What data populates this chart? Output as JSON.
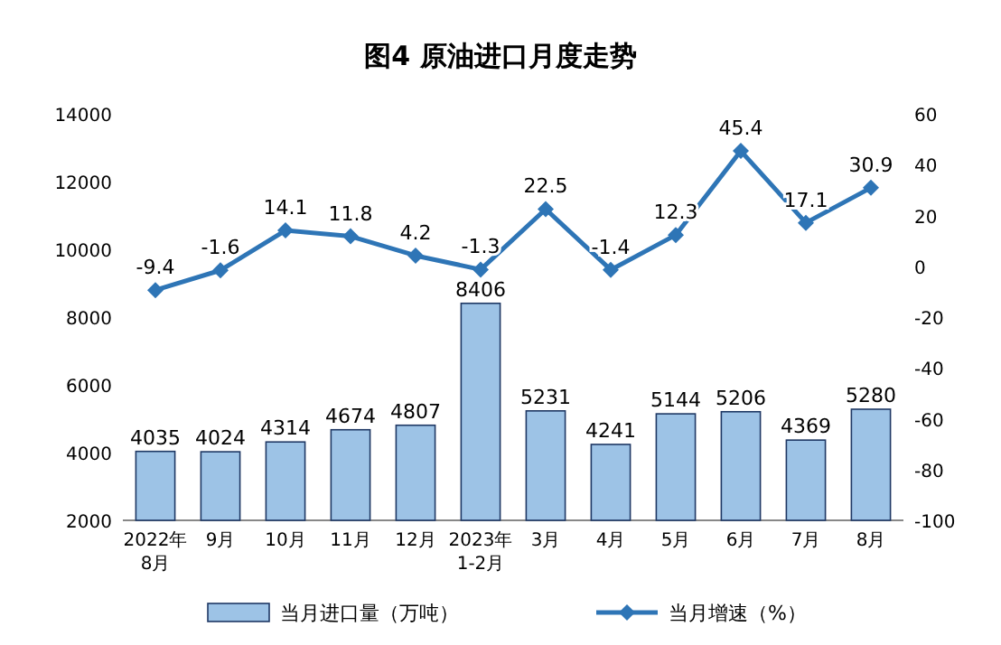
{
  "chart_data": {
    "type": "bar",
    "title": "图4 原油进口月度走势",
    "categories": [
      "2022年\n8月",
      "9月",
      "10月",
      "11月",
      "12月",
      "2023年\n1-2月",
      "3月",
      "4月",
      "5月",
      "6月",
      "7月",
      "8月"
    ],
    "series": [
      {
        "name": "当月进口量（万吨）",
        "color": "#9dc3e6",
        "values": [
          4035,
          4024,
          4314,
          4674,
          4807,
          8406,
          5231,
          4241,
          5144,
          5206,
          4369,
          5280
        ]
      },
      {
        "name": "当月增速（%）",
        "type": "line",
        "axis": "y2",
        "color": "#2e75b6",
        "marker": "diamond",
        "values": [
          -9.4,
          -1.6,
          14.1,
          11.8,
          4.2,
          -1.3,
          22.5,
          -1.4,
          12.3,
          45.4,
          17.1,
          30.9
        ]
      }
    ],
    "ylim": [
      2000,
      14000
    ],
    "yticks": [
      2000,
      4000,
      6000,
      8000,
      10000,
      12000,
      14000
    ],
    "y2lim": [
      -100,
      60
    ],
    "y2ticks": [
      -100,
      -80,
      -60,
      -40,
      -20,
      0,
      20,
      40,
      60
    ],
    "data_labels": true,
    "legend": "bottom",
    "grid": false
  }
}
